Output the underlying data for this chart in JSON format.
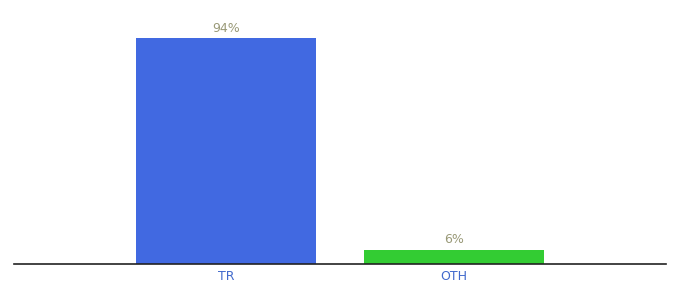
{
  "categories": [
    "TR",
    "OTH"
  ],
  "values": [
    94,
    6
  ],
  "bar_colors": [
    "#4169e1",
    "#33cc33"
  ],
  "label_texts": [
    "94%",
    "6%"
  ],
  "ylim": [
    0,
    100
  ],
  "background_color": "#ffffff",
  "label_color": "#999977",
  "label_fontsize": 9,
  "tick_fontsize": 9,
  "tick_color": "#4169cc",
  "bar_width": 0.55,
  "xlim": [
    -0.2,
    1.8
  ]
}
